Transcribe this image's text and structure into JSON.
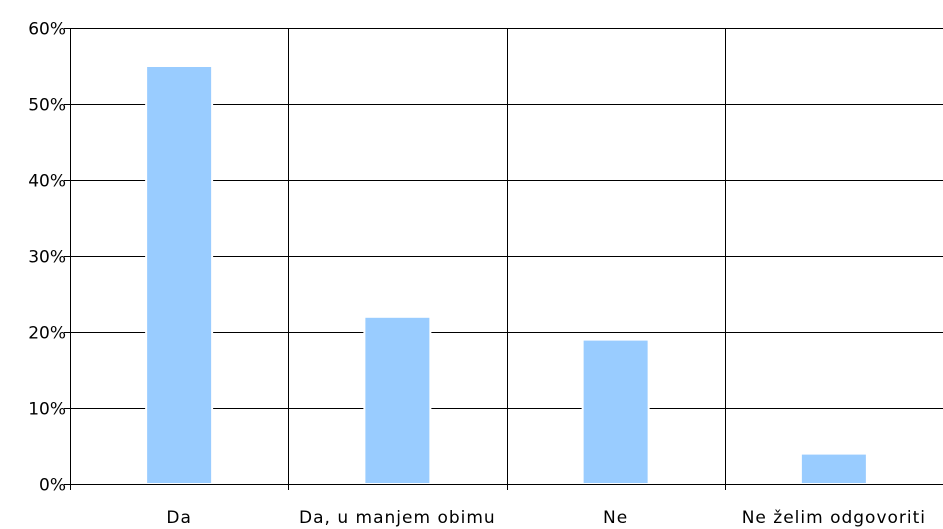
{
  "chart_data": {
    "type": "bar",
    "categories": [
      "Da",
      "Da, u manjem obimu",
      "Ne",
      "Ne želim odgovoriti"
    ],
    "values": [
      55,
      22,
      19,
      4
    ],
    "y_ticks": [
      "0%",
      "10%",
      "20%",
      "30%",
      "40%",
      "50%",
      "60%"
    ],
    "ylim": [
      0,
      60
    ],
    "y_unit": "%",
    "grid": "horizontal and vertical",
    "colors": {
      "bar_fill": "#99ccff",
      "bar_edge": "#ffffff",
      "grid": "#000000",
      "text": "#000000"
    }
  }
}
